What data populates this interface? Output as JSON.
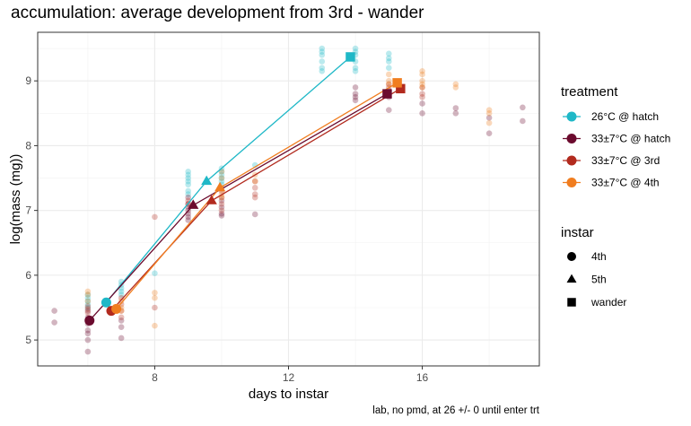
{
  "title": "accumulation: average development from 3rd - wander",
  "caption": "lab, no pmd, at 26 +/- 0 until enter trt",
  "chart_data": {
    "type": "scatter",
    "title": "accumulation: average development from 3rd - wander",
    "xlabel": "days to instar",
    "ylabel": "log(mass (mg))",
    "xlim": [
      4.5,
      19.5
    ],
    "ylim": [
      4.6,
      9.75
    ],
    "x_ticks": [
      8,
      12,
      16
    ],
    "y_ticks": [
      5,
      6,
      7,
      8,
      9
    ],
    "x_tick_labels": [
      "8",
      "12",
      "16"
    ],
    "y_tick_labels": [
      "5",
      "6",
      "7",
      "8",
      "9"
    ],
    "grid": true,
    "legend_placement": "right",
    "legend": {
      "treatment_title": "treatment",
      "instar_title": "instar",
      "instars": [
        {
          "label": "4th",
          "shape": "circle"
        },
        {
          "label": "5th",
          "shape": "triangle"
        },
        {
          "label": "wander",
          "shape": "square"
        }
      ]
    },
    "series": [
      {
        "name": "26°C @ hatch",
        "color": "#1fb8c7",
        "means": [
          {
            "instar": "4th",
            "x": 6.55,
            "y": 5.58
          },
          {
            "instar": "5th",
            "x": 9.55,
            "y": 7.45
          },
          {
            "instar": "wander",
            "x": 13.85,
            "y": 9.37
          }
        ],
        "points": [
          [
            6,
            5.6
          ],
          [
            6,
            5.65
          ],
          [
            6,
            5.7
          ],
          [
            6,
            5.5
          ],
          [
            6,
            5.55
          ],
          [
            7,
            5.8
          ],
          [
            7,
            5.85
          ],
          [
            7,
            5.9
          ],
          [
            7,
            5.7
          ],
          [
            7,
            5.75
          ],
          [
            8,
            6.03
          ],
          [
            9,
            7.6
          ],
          [
            9,
            7.55
          ],
          [
            9,
            7.5
          ],
          [
            9,
            7.45
          ],
          [
            9,
            7.4
          ],
          [
            9,
            7.3
          ],
          [
            9,
            7.25
          ],
          [
            10,
            7.6
          ],
          [
            10,
            7.65
          ],
          [
            10,
            7.55
          ],
          [
            10,
            7.5
          ],
          [
            10,
            7.45
          ],
          [
            10,
            7.4
          ],
          [
            11,
            7.7
          ],
          [
            13,
            9.5
          ],
          [
            13,
            9.45
          ],
          [
            13,
            9.4
          ],
          [
            13,
            9.3
          ],
          [
            13,
            9.2
          ],
          [
            13,
            9.15
          ],
          [
            14,
            9.5
          ],
          [
            14,
            9.45
          ],
          [
            14,
            9.4
          ],
          [
            14,
            9.3
          ],
          [
            14,
            9.2
          ],
          [
            14,
            9.15
          ],
          [
            15,
            9.42
          ],
          [
            15,
            9.35
          ],
          [
            15,
            9.3
          ],
          [
            15,
            9.2
          ]
        ]
      },
      {
        "name": "33±7°C @ hatch",
        "color": "#6b0b2e",
        "means": [
          {
            "instar": "4th",
            "x": 6.05,
            "y": 5.3
          },
          {
            "instar": "5th",
            "x": 9.15,
            "y": 7.08
          },
          {
            "instar": "wander",
            "x": 14.95,
            "y": 8.8
          }
        ],
        "points": [
          [
            5,
            5.45
          ],
          [
            5,
            5.27
          ],
          [
            6,
            5.45
          ],
          [
            6,
            5.35
          ],
          [
            6,
            5.3
          ],
          [
            6,
            5.25
          ],
          [
            6,
            5.15
          ],
          [
            6,
            5.1
          ],
          [
            6,
            5.0
          ],
          [
            6,
            4.82
          ],
          [
            7,
            5.3
          ],
          [
            7,
            5.2
          ],
          [
            7,
            5.03
          ],
          [
            9,
            7.2
          ],
          [
            9,
            7.1
          ],
          [
            9,
            7.05
          ],
          [
            9,
            7.0
          ],
          [
            9,
            6.95
          ],
          [
            9,
            6.9
          ],
          [
            9,
            6.85
          ],
          [
            10,
            7.15
          ],
          [
            10,
            7.05
          ],
          [
            10,
            6.95
          ],
          [
            10,
            6.92
          ],
          [
            11,
            6.94
          ],
          [
            14,
            8.9
          ],
          [
            14,
            8.8
          ],
          [
            14,
            8.75
          ],
          [
            14,
            8.7
          ],
          [
            15,
            8.85
          ],
          [
            15,
            8.75
          ],
          [
            15,
            8.55
          ],
          [
            16,
            8.65
          ],
          [
            16,
            8.5
          ],
          [
            17,
            8.5
          ],
          [
            17,
            8.58
          ],
          [
            18,
            8.43
          ],
          [
            18,
            8.19
          ],
          [
            19,
            8.38
          ],
          [
            19,
            8.59
          ]
        ]
      },
      {
        "name": "33±7°C @ 3rd",
        "color": "#b22a1e",
        "means": [
          {
            "instar": "4th",
            "x": 6.7,
            "y": 5.45
          },
          {
            "instar": "5th",
            "x": 9.7,
            "y": 7.15
          },
          {
            "instar": "wander",
            "x": 15.35,
            "y": 8.88
          }
        ],
        "points": [
          [
            6,
            5.52
          ],
          [
            6,
            5.48
          ],
          [
            6,
            5.42
          ],
          [
            7,
            5.65
          ],
          [
            7,
            5.55
          ],
          [
            7,
            5.45
          ],
          [
            7,
            5.35
          ],
          [
            8,
            6.9
          ],
          [
            8,
            5.5
          ],
          [
            9,
            7.15
          ],
          [
            9,
            7.1
          ],
          [
            10,
            7.3
          ],
          [
            10,
            7.2
          ],
          [
            10,
            7.1
          ],
          [
            10,
            7.0
          ],
          [
            11,
            7.45
          ],
          [
            11,
            7.35
          ],
          [
            11,
            7.25
          ],
          [
            11,
            7.2
          ],
          [
            15,
            8.95
          ],
          [
            15,
            8.9
          ],
          [
            15,
            8.8
          ],
          [
            16,
            8.9
          ],
          [
            16,
            8.8
          ],
          [
            16,
            8.75
          ]
        ]
      },
      {
        "name": "33±7°C @ 4th",
        "color": "#f07d1f",
        "means": [
          {
            "instar": "4th",
            "x": 6.85,
            "y": 5.48
          },
          {
            "instar": "5th",
            "x": 9.95,
            "y": 7.35
          },
          {
            "instar": "wander",
            "x": 15.25,
            "y": 8.97
          }
        ],
        "points": [
          [
            6,
            5.75
          ],
          [
            6,
            5.7
          ],
          [
            6,
            5.6
          ],
          [
            7,
            5.6
          ],
          [
            7,
            5.5
          ],
          [
            7,
            5.45
          ],
          [
            8,
            5.73
          ],
          [
            8,
            5.65
          ],
          [
            8,
            5.22
          ],
          [
            10,
            7.6
          ],
          [
            10,
            7.5
          ],
          [
            10,
            7.35
          ],
          [
            10,
            7.25
          ],
          [
            10,
            7.2
          ],
          [
            11,
            7.55
          ],
          [
            11,
            7.45
          ],
          [
            15,
            9.1
          ],
          [
            15,
            9.0
          ],
          [
            15,
            8.95
          ],
          [
            16,
            9.15
          ],
          [
            16,
            9.1
          ],
          [
            16,
            9.0
          ],
          [
            16,
            8.95
          ],
          [
            16,
            8.9
          ],
          [
            17,
            8.95
          ],
          [
            17,
            8.9
          ],
          [
            18,
            8.55
          ],
          [
            18,
            8.5
          ],
          [
            18,
            8.35
          ]
        ]
      }
    ]
  }
}
